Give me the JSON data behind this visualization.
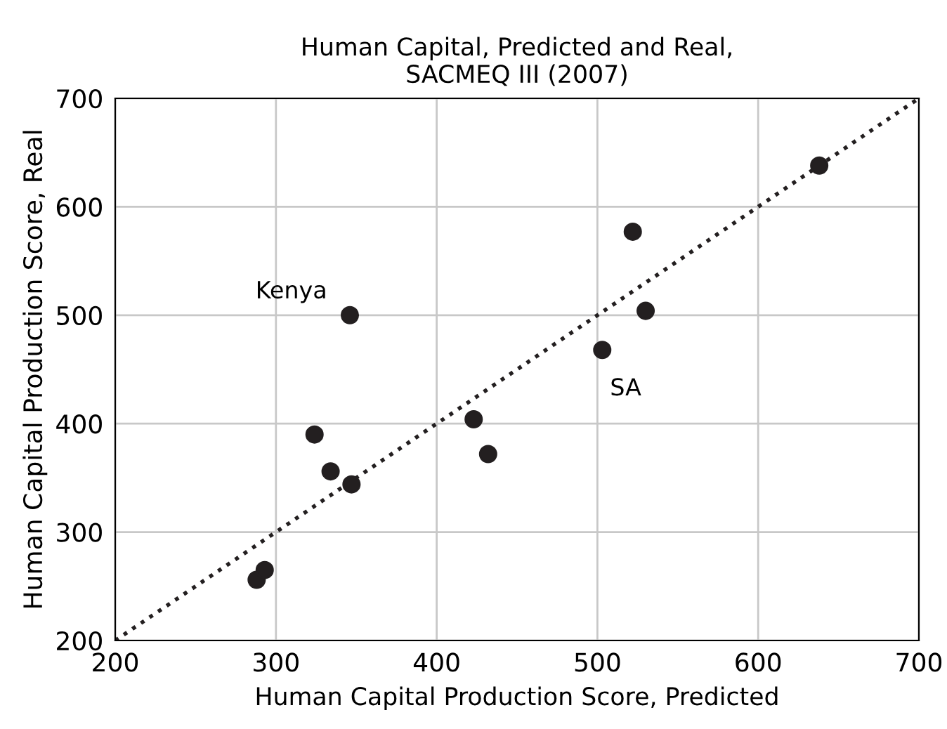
{
  "chart_data": {
    "type": "scatter",
    "title": "Human Capital, Predicted and Real,\nSACMEQ III (2007)",
    "xlabel": "Human Capital Production Score, Predicted",
    "ylabel": "Human Capital Production Score, Real",
    "series": [
      {
        "color": "#231f20",
        "marker": "circle",
        "x": [
          288,
          293,
          324,
          334,
          347,
          346,
          423,
          432,
          503,
          522,
          530,
          638
        ],
        "values": [
          256,
          265,
          390,
          356,
          344,
          500,
          404,
          372,
          468,
          577,
          504,
          638
        ]
      },
      {
        "type": "line",
        "color": "#231f20",
        "line_style": "dotted",
        "marker": "none",
        "x": [
          200,
          700
        ],
        "values": [
          200,
          700
        ]
      }
    ],
    "annotations": [
      {
        "text": "Kenya",
        "x": 346,
        "y": 500
      },
      {
        "text": "SA",
        "x": 503,
        "y": 468
      }
    ],
    "xlim": [
      200,
      700
    ],
    "ylim": [
      200,
      700
    ],
    "xticks": [
      200,
      300,
      400,
      500,
      600,
      700
    ],
    "yticks": [
      200,
      300,
      400,
      500,
      600,
      700
    ],
    "grid": true,
    "legend": false
  }
}
